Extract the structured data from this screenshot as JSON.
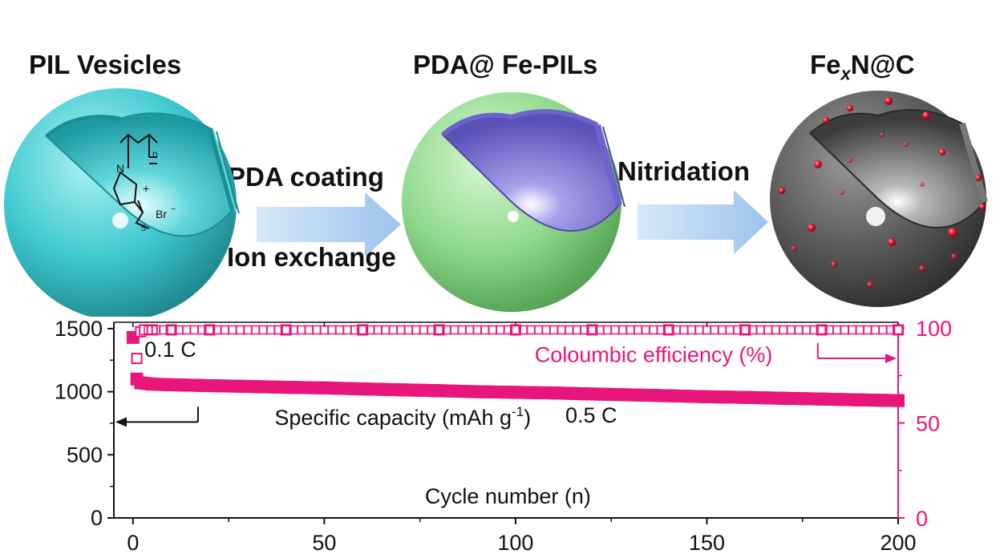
{
  "scheme": {
    "stages": [
      {
        "title": "PIL  Vesicles"
      },
      {
        "title_main": "PDA@ Fe-PILs"
      },
      {
        "title_prefix": "Fe",
        "title_sub": "x",
        "title_suffix": "N@C"
      }
    ],
    "step1": {
      "top": "PDA coating",
      "bottom": "Ion exchange"
    },
    "step2": {
      "top": "Nitridation"
    },
    "formula": {
      "n": "n",
      "charge": "+",
      "anion": "Br",
      "anion_charge": "−",
      "sub": "5",
      "n_atom": "N"
    }
  },
  "colors": {
    "cap": "#e8167a",
    "ce": "#e8167a",
    "axis_right": "#e8167a",
    "axis_left": "#111111",
    "cyan": "#3fc9cf",
    "green": "#8fd98c",
    "purple": "#7b72d6",
    "gray": "#5a5a5a",
    "arrow": "#a9cbef"
  },
  "chart_data": {
    "type": "scatter",
    "xlabel": "Cycle number (n)",
    "xlim": [
      -5,
      200
    ],
    "xticks": [
      "0",
      "50",
      "100",
      "150",
      "200"
    ],
    "ylim_left": [
      0,
      1550
    ],
    "yticks_left": [
      "0",
      "500",
      "1000",
      "1500"
    ],
    "ylim_right": [
      0,
      103
    ],
    "yticks_right": [
      "0",
      "50",
      "100"
    ],
    "annotations": {
      "rate1": "0.1 C",
      "rate2": "0.5 C",
      "cap_label": "Specific capacity (mAh g",
      "cap_label_sup": "-1",
      "cap_label_end": ")",
      "ce_label": "Coloumbic efficiency (%)"
    },
    "series": [
      {
        "name": "Specific capacity (mAh g-1)",
        "axis": "left",
        "marker": "filled-square",
        "x": [
          0,
          1,
          2,
          5,
          10,
          20,
          30,
          40,
          50,
          60,
          70,
          80,
          90,
          100,
          110,
          120,
          130,
          140,
          150,
          160,
          170,
          180,
          190,
          200
        ],
        "y": [
          1430,
          1100,
          1070,
          1060,
          1055,
          1048,
          1042,
          1035,
          1030,
          1022,
          1015,
          1008,
          1000,
          995,
          990,
          982,
          975,
          968,
          960,
          955,
          948,
          942,
          935,
          930
        ]
      },
      {
        "name": "Coloumbic efficiency (%)",
        "axis": "right",
        "marker": "open-square",
        "x": [
          1,
          2,
          3,
          5,
          10,
          20,
          40,
          60,
          80,
          100,
          120,
          140,
          160,
          180,
          200
        ],
        "y": [
          84,
          98,
          99,
          99,
          99,
          99,
          99,
          99,
          99,
          99,
          99,
          99,
          99,
          99,
          99
        ]
      }
    ]
  }
}
